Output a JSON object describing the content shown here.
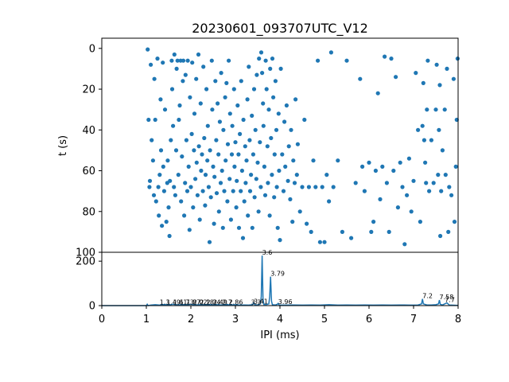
{
  "chart_data": [
    {
      "type": "scatter",
      "title": "20230601_093707UTC_V12",
      "xlabel": "",
      "ylabel": "t (s)",
      "xlim": [
        0,
        8
      ],
      "ylim": [
        100,
        -5
      ],
      "yticks": [
        0,
        20,
        40,
        60,
        80,
        100
      ],
      "y_inverted": true,
      "marker_color": "#1f77b4",
      "points": [
        [
          1.03,
          0.5
        ],
        [
          1.05,
          35
        ],
        [
          1.07,
          68
        ],
        [
          1.08,
          65
        ],
        [
          1.1,
          8
        ],
        [
          1.12,
          45
        ],
        [
          1.15,
          55
        ],
        [
          1.17,
          72
        ],
        [
          1.18,
          15
        ],
        [
          1.2,
          35
        ],
        [
          1.22,
          75
        ],
        [
          1.25,
          5
        ],
        [
          1.27,
          68
        ],
        [
          1.28,
          82
        ],
        [
          1.3,
          62
        ],
        [
          1.32,
          25
        ],
        [
          1.33,
          50
        ],
        [
          1.35,
          87
        ],
        [
          1.37,
          7
        ],
        [
          1.38,
          58
        ],
        [
          1.4,
          70
        ],
        [
          1.42,
          30
        ],
        [
          1.45,
          85
        ],
        [
          1.47,
          66
        ],
        [
          1.48,
          55
        ],
        [
          1.5,
          78
        ],
        [
          1.52,
          92
        ],
        [
          1.53,
          65
        ],
        [
          1.55,
          45
        ],
        [
          1.57,
          6
        ],
        [
          1.58,
          20
        ],
        [
          1.6,
          38
        ],
        [
          1.62,
          68
        ],
        [
          1.63,
          3
        ],
        [
          1.65,
          72
        ],
        [
          1.67,
          50
        ],
        [
          1.68,
          10
        ],
        [
          1.7,
          6
        ],
        [
          1.72,
          62
        ],
        [
          1.73,
          35
        ],
        [
          1.75,
          28
        ],
        [
          1.77,
          6
        ],
        [
          1.78,
          75
        ],
        [
          1.8,
          53
        ],
        [
          1.82,
          16
        ],
        [
          1.83,
          6
        ],
        [
          1.85,
          82
        ],
        [
          1.87,
          66
        ],
        [
          1.88,
          13
        ],
        [
          1.9,
          45
        ],
        [
          1.92,
          70
        ],
        [
          1.93,
          6
        ],
        [
          1.95,
          58
        ],
        [
          1.97,
          89
        ],
        [
          1.98,
          24
        ],
        [
          2.0,
          68
        ],
        [
          2.02,
          42
        ],
        [
          2.03,
          7
        ],
        [
          2.05,
          78
        ],
        [
          2.07,
          50
        ],
        [
          2.08,
          32
        ],
        [
          2.1,
          64
        ],
        [
          2.12,
          15
        ],
        [
          2.13,
          56
        ],
        [
          2.15,
          72
        ],
        [
          2.17,
          3
        ],
        [
          2.18,
          48
        ],
        [
          2.2,
          84
        ],
        [
          2.22,
          27
        ],
        [
          2.23,
          60
        ],
        [
          2.25,
          52
        ],
        [
          2.27,
          70
        ],
        [
          2.28,
          9
        ],
        [
          2.3,
          44
        ],
        [
          2.32,
          77
        ],
        [
          2.33,
          62
        ],
        [
          2.35,
          20
        ],
        [
          2.37,
          55
        ],
        [
          2.38,
          38
        ],
        [
          2.4,
          68
        ],
        [
          2.42,
          95
        ],
        [
          2.43,
          50
        ],
        [
          2.45,
          73
        ],
        [
          2.47,
          6
        ],
        [
          2.48,
          30
        ],
        [
          2.5,
          58
        ],
        [
          2.52,
          86
        ],
        [
          2.53,
          63
        ],
        [
          2.55,
          16
        ],
        [
          2.57,
          45
        ],
        [
          2.58,
          71
        ],
        [
          2.6,
          27
        ],
        [
          2.62,
          52
        ],
        [
          2.63,
          80
        ],
        [
          2.65,
          36
        ],
        [
          2.67,
          66
        ],
        [
          2.68,
          12
        ],
        [
          2.7,
          60
        ],
        [
          2.72,
          88
        ],
        [
          2.73,
          40
        ],
        [
          2.75,
          70
        ],
        [
          2.77,
          24
        ],
        [
          2.78,
          55
        ],
        [
          2.8,
          17
        ],
        [
          2.82,
          75
        ],
        [
          2.83,
          47
        ],
        [
          2.85,
          6
        ],
        [
          2.87,
          64
        ],
        [
          2.88,
          32
        ],
        [
          2.9,
          84
        ],
        [
          2.92,
          52
        ],
        [
          2.93,
          38
        ],
        [
          2.95,
          70
        ],
        [
          2.97,
          20
        ],
        [
          2.98,
          58
        ],
        [
          3.0,
          46
        ],
        [
          3.02,
          78
        ],
        [
          3.03,
          65
        ],
        [
          3.05,
          28
        ],
        [
          3.07,
          52
        ],
        [
          3.08,
          88
        ],
        [
          3.1,
          42
        ],
        [
          3.12,
          70
        ],
        [
          3.13,
          16
        ],
        [
          3.15,
          60
        ],
        [
          3.17,
          93
        ],
        [
          3.18,
          35
        ],
        [
          3.2,
          75
        ],
        [
          3.22,
          48
        ],
        [
          3.23,
          66
        ],
        [
          3.25,
          55
        ],
        [
          3.27,
          25
        ],
        [
          3.28,
          82
        ],
        [
          3.3,
          9
        ],
        [
          3.32,
          45
        ],
        [
          3.33,
          70
        ],
        [
          3.35,
          62
        ],
        [
          3.37,
          33
        ],
        [
          3.38,
          88
        ],
        [
          3.4,
          52
        ],
        [
          3.42,
          20
        ],
        [
          3.43,
          73
        ],
        [
          3.45,
          40
        ],
        [
          3.47,
          64
        ],
        [
          3.48,
          13
        ],
        [
          3.5,
          56
        ],
        [
          3.52,
          80
        ],
        [
          3.53,
          5
        ],
        [
          3.55,
          46
        ],
        [
          3.57,
          68
        ],
        [
          3.58,
          2
        ],
        [
          3.6,
          12
        ],
        [
          3.62,
          27
        ],
        [
          3.63,
          38
        ],
        [
          3.65,
          58
        ],
        [
          3.67,
          72
        ],
        [
          3.68,
          6
        ],
        [
          3.7,
          20
        ],
        [
          3.72,
          48
        ],
        [
          3.73,
          66
        ],
        [
          3.75,
          30
        ],
        [
          3.77,
          82
        ],
        [
          3.78,
          10
        ],
        [
          3.8,
          44
        ],
        [
          3.82,
          62
        ],
        [
          3.83,
          5
        ],
        [
          3.85,
          24
        ],
        [
          3.87,
          73
        ],
        [
          3.88,
          52
        ],
        [
          3.9,
          16
        ],
        [
          3.92,
          40
        ],
        [
          3.93,
          68
        ],
        [
          3.95,
          88
        ],
        [
          3.97,
          32
        ],
        [
          3.98,
          60
        ],
        [
          4.0,
          94
        ],
        [
          4.02,
          10
        ],
        [
          4.05,
          52
        ],
        [
          4.08,
          70
        ],
        [
          4.1,
          36
        ],
        [
          4.12,
          58
        ],
        [
          4.15,
          28
        ],
        [
          4.18,
          65
        ],
        [
          4.2,
          48
        ],
        [
          4.23,
          74
        ],
        [
          4.25,
          40
        ],
        [
          4.28,
          85
        ],
        [
          4.3,
          55
        ],
        [
          4.33,
          66
        ],
        [
          4.35,
          25
        ],
        [
          4.38,
          62
        ],
        [
          4.4,
          47
        ],
        [
          4.45,
          80
        ],
        [
          4.5,
          68
        ],
        [
          4.55,
          35
        ],
        [
          4.6,
          86
        ],
        [
          4.65,
          68
        ],
        [
          4.7,
          90
        ],
        [
          4.75,
          55
        ],
        [
          4.8,
          68
        ],
        [
          4.85,
          6
        ],
        [
          4.9,
          95
        ],
        [
          4.95,
          68
        ],
        [
          5.0,
          95
        ],
        [
          5.05,
          62
        ],
        [
          5.1,
          75
        ],
        [
          5.15,
          2
        ],
        [
          5.2,
          68
        ],
        [
          5.3,
          55
        ],
        [
          5.4,
          90
        ],
        [
          5.5,
          6
        ],
        [
          5.6,
          93
        ],
        [
          5.7,
          66
        ],
        [
          5.8,
          15
        ],
        [
          5.85,
          58
        ],
        [
          5.9,
          70
        ],
        [
          6.0,
          56
        ],
        [
          6.05,
          90
        ],
        [
          6.1,
          85
        ],
        [
          6.15,
          60
        ],
        [
          6.2,
          22
        ],
        [
          6.25,
          74
        ],
        [
          6.3,
          58
        ],
        [
          6.35,
          4
        ],
        [
          6.4,
          66
        ],
        [
          6.45,
          90
        ],
        [
          6.5,
          5
        ],
        [
          6.55,
          60
        ],
        [
          6.6,
          14
        ],
        [
          6.65,
          78
        ],
        [
          6.7,
          56
        ],
        [
          6.75,
          68
        ],
        [
          6.8,
          96
        ],
        [
          6.85,
          72
        ],
        [
          6.9,
          54
        ],
        [
          6.95,
          80
        ],
        [
          7.0,
          65
        ],
        [
          7.05,
          12
        ],
        [
          7.1,
          40
        ],
        [
          7.15,
          85
        ],
        [
          7.2,
          38
        ],
        [
          7.22,
          17
        ],
        [
          7.24,
          45
        ],
        [
          7.26,
          56
        ],
        [
          7.28,
          66
        ],
        [
          7.3,
          30
        ],
        [
          7.32,
          6
        ],
        [
          7.35,
          70
        ],
        [
          7.4,
          45
        ],
        [
          7.45,
          66
        ],
        [
          7.5,
          30
        ],
        [
          7.52,
          8
        ],
        [
          7.55,
          62
        ],
        [
          7.57,
          40
        ],
        [
          7.59,
          18
        ],
        [
          7.6,
          92
        ],
        [
          7.62,
          70
        ],
        [
          7.65,
          50
        ],
        [
          7.7,
          30
        ],
        [
          7.72,
          62
        ],
        [
          7.75,
          10
        ],
        [
          7.78,
          90
        ],
        [
          7.8,
          68
        ],
        [
          7.85,
          72
        ],
        [
          7.9,
          15
        ],
        [
          7.92,
          85
        ],
        [
          7.95,
          58
        ],
        [
          7.97,
          35
        ],
        [
          7.99,
          5
        ]
      ]
    },
    {
      "type": "line",
      "xlabel": "IPI (ms)",
      "ylabel": "",
      "xlim": [
        0,
        8
      ],
      "ylim": [
        0,
        240
      ],
      "xticks": [
        0,
        1,
        2,
        3,
        4,
        5,
        6,
        7,
        8
      ],
      "yticks": [
        0,
        200
      ],
      "line_color": "#1f77b4",
      "series": [
        {
          "x": [
            0,
            0.5,
            1.0,
            1.02,
            1.04,
            1.1,
            1.2,
            1.3,
            1.4,
            1.5,
            1.6,
            1.7,
            1.8,
            1.9,
            2.0,
            2.1,
            2.2,
            2.3,
            2.4,
            2.5,
            2.6,
            2.7,
            2.8,
            2.9,
            3.0,
            3.1,
            3.2,
            3.3,
            3.38,
            3.41,
            3.44,
            3.5,
            3.56,
            3.58,
            3.6,
            3.62,
            3.64,
            3.7,
            3.75,
            3.77,
            3.79,
            3.81,
            3.83,
            3.9,
            3.94,
            3.96,
            3.98,
            4.1,
            4.3,
            4.5,
            4.7,
            4.9,
            5.1,
            5.3,
            5.5,
            5.7,
            5.9,
            6.1,
            6.3,
            6.5,
            6.7,
            6.9,
            7.1,
            7.18,
            7.2,
            7.22,
            7.3,
            7.4,
            7.5,
            7.56,
            7.58,
            7.6,
            7.65,
            7.7,
            7.75,
            7.8,
            8.0
          ],
          "y": [
            0,
            0,
            0,
            6,
            0,
            2,
            4,
            2,
            5,
            3,
            6,
            2,
            5,
            3,
            6,
            2,
            4,
            3,
            5,
            3,
            4,
            2,
            5,
            3,
            4,
            2,
            3,
            2,
            4,
            12,
            3,
            3,
            8,
            40,
            225,
            30,
            5,
            5,
            8,
            40,
            130,
            20,
            4,
            3,
            6,
            10,
            3,
            2,
            3,
            2,
            3,
            2,
            4,
            2,
            3,
            2,
            3,
            2,
            3,
            2,
            3,
            2,
            3,
            8,
            30,
            8,
            3,
            3,
            4,
            8,
            25,
            6,
            3,
            8,
            12,
            3,
            1
          ]
        }
      ],
      "peak_labels": [
        {
          "x": 1.3,
          "y": 2,
          "text": "1.3"
        },
        {
          "x": 1.45,
          "y": 2,
          "text": "1.49"
        },
        {
          "x": 1.6,
          "y": 2,
          "text": "1.61"
        },
        {
          "x": 1.75,
          "y": 2,
          "text": "1.73"
        },
        {
          "x": 1.9,
          "y": 2,
          "text": "1.87"
        },
        {
          "x": 2.05,
          "y": 2,
          "text": "2.02"
        },
        {
          "x": 2.2,
          "y": 2,
          "text": "2.18"
        },
        {
          "x": 2.35,
          "y": 2,
          "text": "2.34"
        },
        {
          "x": 2.5,
          "y": 2,
          "text": "2.49"
        },
        {
          "x": 2.7,
          "y": 2,
          "text": "2.7"
        },
        {
          "x": 2.85,
          "y": 2,
          "text": "2.86"
        },
        {
          "x": 3.35,
          "y": 2,
          "text": "3.3"
        },
        {
          "x": 3.41,
          "y": 5,
          "text": "3.41"
        },
        {
          "x": 3.6,
          "y": 225,
          "text": "3.6"
        },
        {
          "x": 3.79,
          "y": 130,
          "text": "3.79"
        },
        {
          "x": 3.96,
          "y": 3,
          "text": "3.96"
        },
        {
          "x": 7.2,
          "y": 30,
          "text": "7.2"
        },
        {
          "x": 7.58,
          "y": 25,
          "text": "7.58"
        },
        {
          "x": 7.7,
          "y": 12,
          "text": "7.7"
        }
      ]
    }
  ]
}
